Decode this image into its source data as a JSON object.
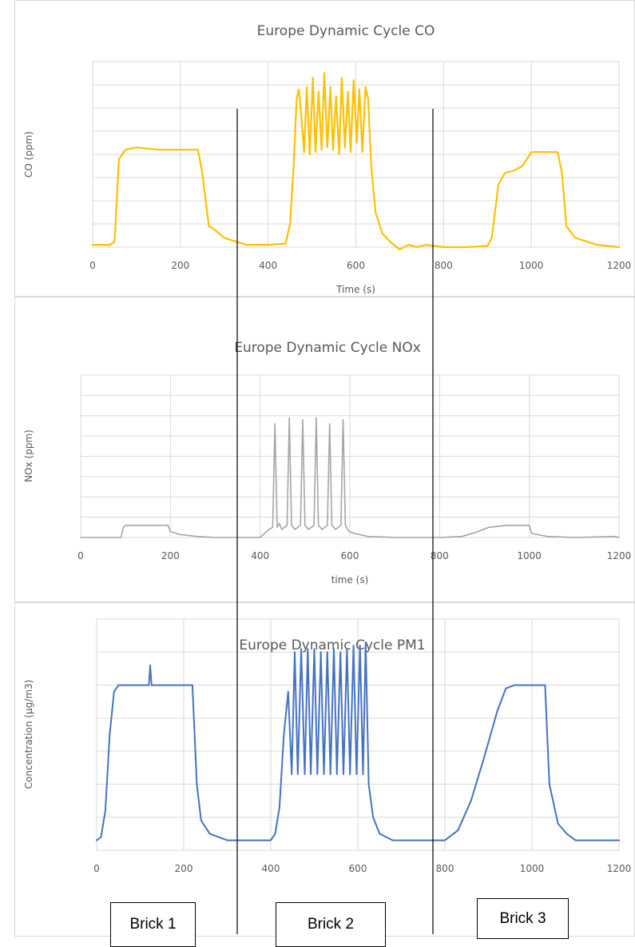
{
  "chart_data": [
    {
      "type": "line",
      "title": "Europe Dynamic Cycle CO",
      "xlabel": "Time (s)",
      "ylabel": "CO (ppm)",
      "xlim": [
        0,
        1200
      ],
      "ylim": [
        0,
        8
      ],
      "x_ticks": [
        "0",
        "200",
        "400",
        "600",
        "800",
        "1000",
        "1200"
      ],
      "y_ticks": [],
      "grid": true,
      "legend": "none",
      "series": [
        {
          "color": "#ffc000",
          "x": [
            0,
            40,
            50,
            60,
            75,
            100,
            150,
            200,
            240,
            250,
            265,
            275,
            300,
            350,
            400,
            440,
            450,
            458,
            465,
            470,
            475,
            482,
            488,
            495,
            502,
            508,
            515,
            522,
            528,
            535,
            542,
            548,
            555,
            562,
            568,
            575,
            582,
            588,
            595,
            602,
            608,
            615,
            622,
            628,
            635,
            645,
            660,
            680,
            700,
            720,
            740,
            760,
            800,
            850,
            900,
            910,
            925,
            940,
            960,
            980,
            1000,
            1040,
            1060,
            1070,
            1080,
            1100,
            1150,
            1200
          ],
          "y": [
            0.1,
            0.1,
            0.25,
            3.8,
            4.2,
            4.3,
            4.2,
            4.2,
            4.2,
            3.2,
            0.9,
            0.8,
            0.4,
            0.1,
            0.1,
            0.15,
            1.0,
            3.4,
            6.4,
            6.8,
            5.8,
            4.1,
            6.9,
            4.0,
            7.3,
            4.1,
            6.7,
            4.2,
            7.5,
            4.3,
            6.9,
            4.2,
            6.5,
            4.0,
            7.3,
            4.3,
            6.7,
            4.1,
            7.2,
            4.5,
            6.8,
            4.1,
            6.9,
            6.4,
            3.5,
            1.5,
            0.6,
            0.2,
            -0.1,
            0.1,
            0.0,
            0.1,
            0.0,
            0.0,
            0.05,
            0.4,
            2.7,
            3.2,
            3.3,
            3.5,
            4.1,
            4.1,
            4.1,
            3.2,
            0.9,
            0.4,
            0.1,
            0.0
          ]
        }
      ]
    },
    {
      "type": "line",
      "title": "Europe Dynamic Cycle NOx",
      "xlabel": "time (s)",
      "ylabel": "NOx (ppm)",
      "xlim": [
        0,
        1200
      ],
      "ylim": [
        0,
        8
      ],
      "x_ticks": [
        "0",
        "200",
        "400",
        "600",
        "800",
        "1000",
        "1200"
      ],
      "y_ticks": [],
      "grid": true,
      "legend": "none",
      "series": [
        {
          "color": "#a5a5a5",
          "x": [
            0,
            90,
            95,
            100,
            150,
            195,
            200,
            220,
            260,
            300,
            400,
            410,
            420,
            428,
            433,
            438,
            443,
            448,
            460,
            465,
            470,
            478,
            490,
            495,
            500,
            508,
            520,
            525,
            530,
            538,
            550,
            555,
            560,
            568,
            580,
            585,
            590,
            598,
            610,
            640,
            700,
            750,
            800,
            850,
            880,
            910,
            950,
            990,
            1000,
            1005,
            1040,
            1100,
            1190,
            1200
          ],
          "y": [
            0,
            0,
            0.5,
            0.6,
            0.6,
            0.6,
            0.3,
            0.15,
            0.05,
            0.0,
            0.0,
            0.2,
            0.4,
            0.5,
            5.6,
            0.5,
            0.7,
            0.4,
            0.6,
            5.9,
            0.6,
            0.4,
            0.6,
            5.8,
            0.6,
            0.4,
            0.6,
            5.9,
            0.6,
            0.4,
            0.6,
            5.6,
            0.6,
            0.4,
            0.6,
            5.8,
            0.6,
            0.3,
            0.2,
            0.05,
            0.0,
            0.0,
            0.0,
            0.05,
            0.25,
            0.5,
            0.6,
            0.6,
            0.6,
            0.2,
            0.05,
            0.0,
            0.05,
            0.0
          ]
        }
      ]
    },
    {
      "type": "line",
      "title": "Europe Dynamic Cycle PM1",
      "xlabel": "",
      "ylabel": "Concentration (µg/m3)",
      "xlim": [
        0,
        1200
      ],
      "ylim": [
        0,
        7
      ],
      "x_ticks": [
        "0",
        "200",
        "400",
        "600",
        "800",
        "1000",
        "1200"
      ],
      "y_ticks": [],
      "grid": true,
      "legend": "none",
      "series": [
        {
          "color": "#4472c4",
          "x": [
            0,
            10,
            20,
            30,
            40,
            50,
            80,
            110,
            120,
            123,
            126,
            130,
            160,
            200,
            220,
            230,
            240,
            260,
            300,
            350,
            400,
            410,
            420,
            430,
            440,
            448,
            455,
            462,
            470,
            478,
            485,
            492,
            500,
            507,
            515,
            522,
            530,
            537,
            545,
            552,
            560,
            567,
            575,
            582,
            590,
            597,
            605,
            612,
            618,
            625,
            635,
            650,
            680,
            700,
            750,
            800,
            830,
            860,
            890,
            920,
            940,
            960,
            1000,
            1020,
            1030,
            1040,
            1060,
            1080,
            1100,
            1150,
            1200
          ],
          "y": [
            0.3,
            0.4,
            1.2,
            3.5,
            4.8,
            5.0,
            5.0,
            5.0,
            5.0,
            5.6,
            5.0,
            5.0,
            5.0,
            5.0,
            5.0,
            2.0,
            0.9,
            0.5,
            0.3,
            0.3,
            0.3,
            0.5,
            1.3,
            3.5,
            4.8,
            2.3,
            6.0,
            2.3,
            6.1,
            2.3,
            6.1,
            2.3,
            6.1,
            2.3,
            6.0,
            2.3,
            6.0,
            2.3,
            6.1,
            2.3,
            6.0,
            2.3,
            6.1,
            2.3,
            6.2,
            2.3,
            6.2,
            2.3,
            6.3,
            2.0,
            1.0,
            0.5,
            0.3,
            0.3,
            0.3,
            0.3,
            0.6,
            1.5,
            2.8,
            4.2,
            4.9,
            5.0,
            5.0,
            5.0,
            5.0,
            2.0,
            0.8,
            0.5,
            0.3,
            0.3,
            0.3
          ]
        }
      ]
    }
  ],
  "bricks": [
    {
      "label": "Brick 1"
    },
    {
      "label": "Brick 2"
    },
    {
      "label": "Brick 3"
    }
  ]
}
